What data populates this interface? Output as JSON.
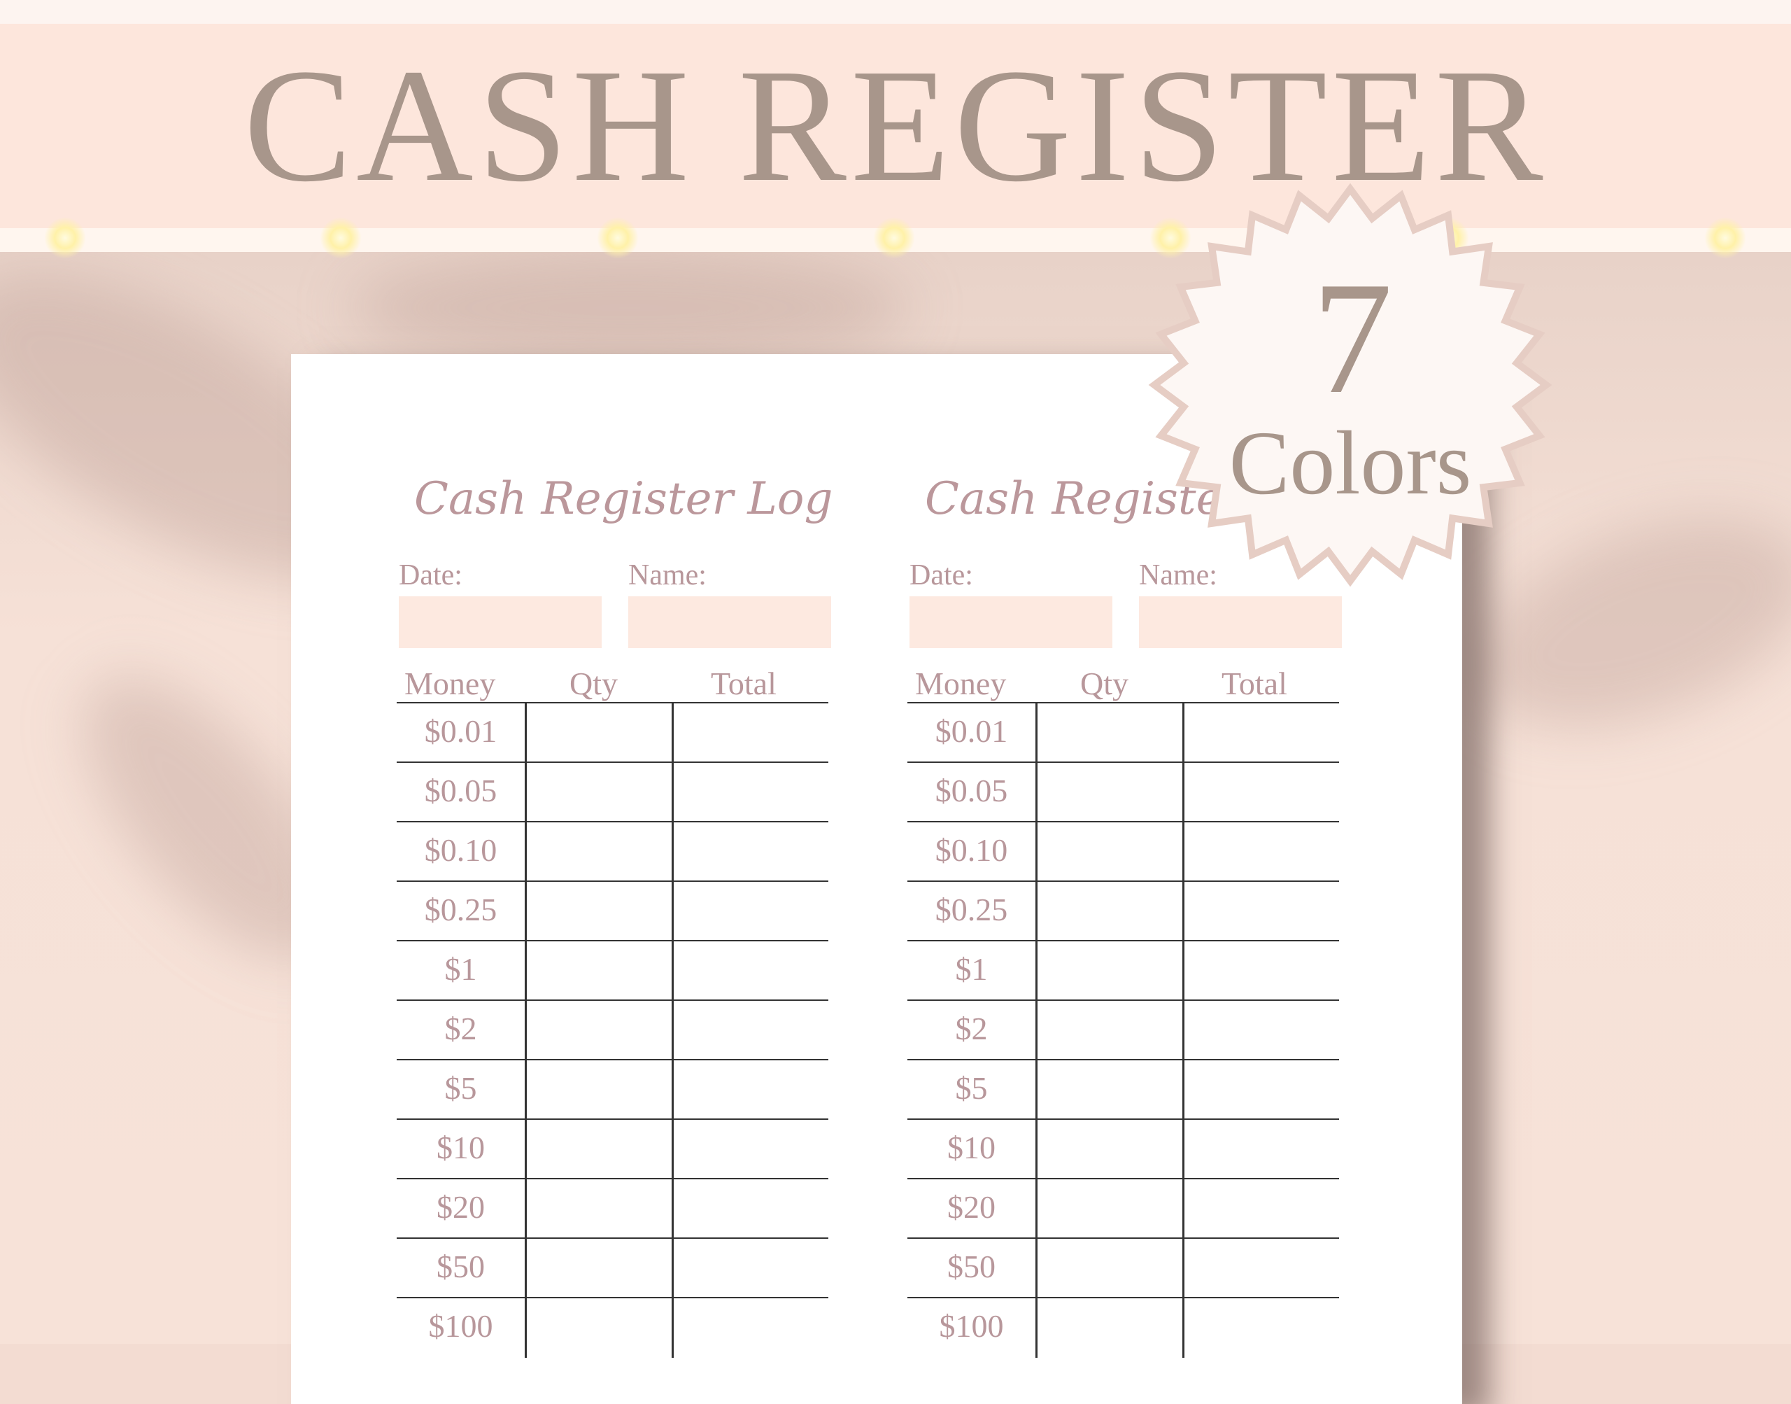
{
  "banner": {
    "title": "CASH REGISTER"
  },
  "badge": {
    "number": "7",
    "label": "Colors"
  },
  "logs": [
    {
      "title": "Cash Register Log",
      "date_label": "Date:",
      "name_label": "Name:",
      "columns": [
        "Money",
        "Qty",
        "Total"
      ]
    },
    {
      "title": "Cash Register Log",
      "date_label": "Date:",
      "name_label": "Name:",
      "columns": [
        "Money",
        "Qty",
        "Total"
      ]
    }
  ],
  "denominations": [
    "$0.01",
    "$0.05",
    "$0.10",
    "$0.25",
    "$1",
    "$2",
    "$5",
    "$10",
    "$20",
    "$50",
    "$100"
  ],
  "colors": {
    "band": "#fde6dc",
    "title": "#a8968b",
    "text": "#b8979b",
    "field": "#fde9e0"
  }
}
